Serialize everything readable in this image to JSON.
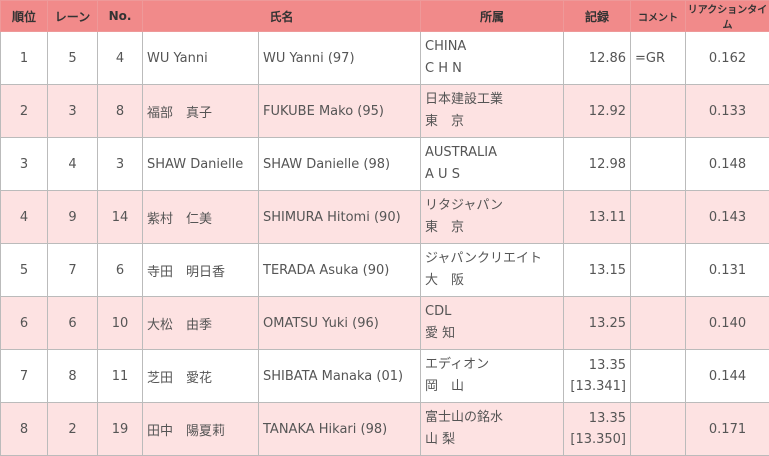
{
  "headers": {
    "rank": "順位",
    "lane": "レーン",
    "no": "No.",
    "name": "氏名",
    "affiliation": "所属",
    "record": "記録",
    "comment": "コメント",
    "reaction": "リアクションタイム"
  },
  "colors": {
    "header": "#f18a8a",
    "row_alt": "#fde2e2"
  },
  "rows": [
    {
      "rank": "1",
      "lane": "5",
      "no": "4",
      "name_jp": "WU Yanni",
      "name_en": "WU Yanni (97)",
      "aff1": "CHINA",
      "aff2": "C H N",
      "record": "12.86",
      "record2": "",
      "comment": "=GR",
      "reaction": "0.162"
    },
    {
      "rank": "2",
      "lane": "3",
      "no": "8",
      "name_jp": "福部　真子",
      "name_en": "FUKUBE Mako (95)",
      "aff1": "日本建設工業",
      "aff2": "東　京",
      "record": "12.92",
      "record2": "",
      "comment": "",
      "reaction": "0.133"
    },
    {
      "rank": "3",
      "lane": "4",
      "no": "3",
      "name_jp": "SHAW Danielle",
      "name_en": "SHAW Danielle (98)",
      "aff1": "AUSTRALIA",
      "aff2": "A U S",
      "record": "12.98",
      "record2": "",
      "comment": "",
      "reaction": "0.148"
    },
    {
      "rank": "4",
      "lane": "9",
      "no": "14",
      "name_jp": "紫村　仁美",
      "name_en": "SHIMURA Hitomi (90)",
      "aff1": "リタジャパン",
      "aff2": "東　京",
      "record": "13.11",
      "record2": "",
      "comment": "",
      "reaction": "0.143"
    },
    {
      "rank": "5",
      "lane": "7",
      "no": "6",
      "name_jp": "寺田　明日香",
      "name_en": "TERADA Asuka (90)",
      "aff1": "ジャパンクリエイト",
      "aff2": "大　阪",
      "record": "13.15",
      "record2": "",
      "comment": "",
      "reaction": "0.131"
    },
    {
      "rank": "6",
      "lane": "6",
      "no": "10",
      "name_jp": "大松　由季",
      "name_en": "OMATSU Yuki (96)",
      "aff1": "CDL",
      "aff2": "愛 知",
      "record": "13.25",
      "record2": "",
      "comment": "",
      "reaction": "0.140"
    },
    {
      "rank": "7",
      "lane": "8",
      "no": "11",
      "name_jp": "芝田　愛花",
      "name_en": "SHIBATA Manaka (01)",
      "aff1": "エディオン",
      "aff2": "岡　山",
      "record": "13.35",
      "record2": "[13.341]",
      "comment": "",
      "reaction": "0.144"
    },
    {
      "rank": "8",
      "lane": "2",
      "no": "19",
      "name_jp": "田中　陽夏莉",
      "name_en": "TANAKA Hikari (98)",
      "aff1": "富士山の銘水",
      "aff2": "山 梨",
      "record": "13.35",
      "record2": "[13.350]",
      "comment": "",
      "reaction": "0.171"
    }
  ]
}
